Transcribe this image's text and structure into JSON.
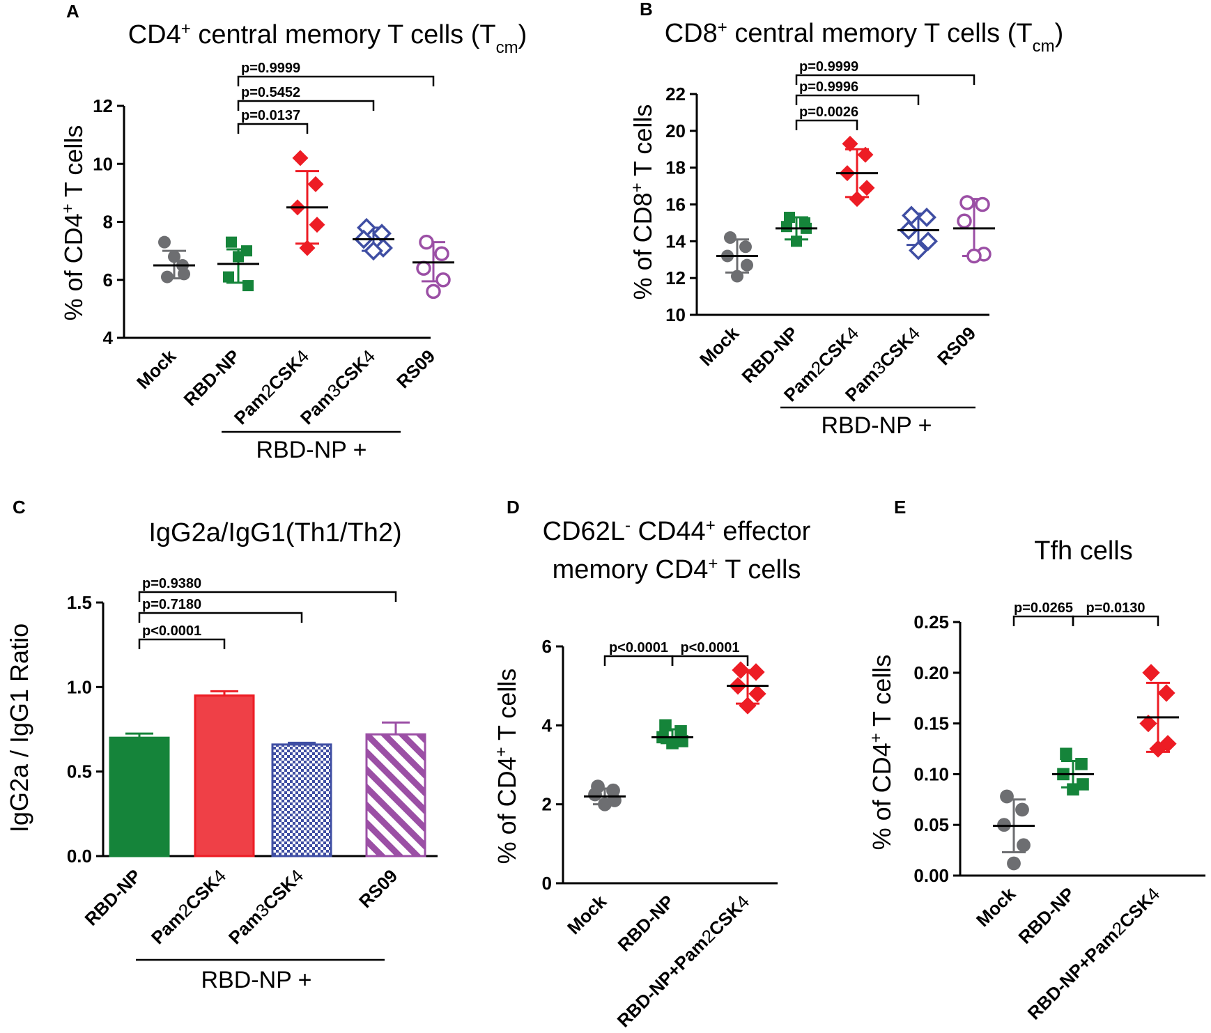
{
  "colors": {
    "Mock": "#6d6e71",
    "RBD-NP": "#15843a",
    "Pam2": "#ed1c24",
    "Pam3": "#3f4ea3",
    "RS09": "#9b4fa5",
    "axis": "#000000"
  },
  "chart_data": [
    {
      "id": "A",
      "letter": "A",
      "type": "scatter",
      "title": "CD4⁺ central memory T cells (T꜀ₘ)",
      "title_parts": {
        "base": "CD4",
        "sup": "+",
        "mid": " central memory T cells (T",
        "sub": "cm",
        "end": ")"
      },
      "ylabel_parts": {
        "base": "% of CD4",
        "sup": "+",
        "end": " T cells"
      },
      "ylim": [
        4,
        12
      ],
      "yticks": [
        4,
        6,
        8,
        10,
        12
      ],
      "ytick_labels": [
        "4",
        "6",
        "8",
        "10",
        "12"
      ],
      "categories": [
        "Mock",
        "RBD-NP",
        "Pam2CSK4",
        "Pam3CSK4",
        "RS09"
      ],
      "category_labels": [
        [
          "Mock"
        ],
        [
          "RBD-NP"
        ],
        [
          "Pam",
          "2",
          "CSK",
          "4"
        ],
        [
          "Pam",
          "3",
          "CSK",
          "4"
        ],
        [
          "RS09"
        ]
      ],
      "group_label": "RBD-NP +",
      "series": [
        {
          "name": "Mock",
          "marker": "circle",
          "filled": true,
          "color_key": "Mock",
          "points": [
            6.1,
            6.5,
            7.3,
            6.2,
            6.8
          ],
          "mean": 6.5,
          "sd_hi": 7.0,
          "sd_lo": 6.05
        },
        {
          "name": "RBD-NP",
          "marker": "square",
          "filled": true,
          "color_key": "RBD-NP",
          "points": [
            7.3,
            7.0,
            6.1,
            5.8,
            6.8
          ],
          "mean": 6.55,
          "sd_hi": 7.05,
          "sd_lo": 5.9
        },
        {
          "name": "Pam2CSK4",
          "marker": "diamond",
          "filled": true,
          "color_key": "Pam2",
          "points": [
            10.2,
            9.3,
            8.5,
            7.9,
            7.1
          ],
          "mean": 8.5,
          "sd_hi": 9.75,
          "sd_lo": 7.25
        },
        {
          "name": "Pam3CSK4",
          "marker": "diamond",
          "filled": false,
          "color_key": "Pam3",
          "points": [
            7.8,
            7.6,
            7.4,
            7.1,
            7.0
          ],
          "mean": 7.4,
          "sd_hi": 7.8,
          "sd_lo": 7.0
        },
        {
          "name": "RS09",
          "marker": "circle",
          "filled": false,
          "color_key": "RS09",
          "points": [
            7.3,
            6.9,
            6.4,
            6.0,
            5.6
          ],
          "mean": 6.6,
          "sd_hi": 7.3,
          "sd_lo": 5.95
        }
      ],
      "comparisons": [
        {
          "label": "p=0.0137",
          "i": 1,
          "j": 2
        },
        {
          "label": "p=0.5452",
          "i": 1,
          "j": 3
        },
        {
          "label": "p=0.9999",
          "i": 1,
          "j": 4
        }
      ]
    },
    {
      "id": "B",
      "letter": "B",
      "type": "scatter",
      "title": "CD8⁺ central memory T cells (T꜀ₘ)",
      "title_parts": {
        "base": "CD8",
        "sup": "+",
        "mid": " central memory T cells (T",
        "sub": "cm",
        "end": ")"
      },
      "ylabel_parts": {
        "base": "% of CD8",
        "sup": "+",
        "end": " T cells"
      },
      "ylim": [
        10,
        22
      ],
      "yticks": [
        10,
        12,
        14,
        16,
        18,
        20,
        22
      ],
      "ytick_labels": [
        "10",
        "12",
        "14",
        "16",
        "18",
        "20",
        "22"
      ],
      "categories": [
        "Mock",
        "RBD-NP",
        "Pam2CSK4",
        "Pam3CSK4",
        "RS09"
      ],
      "category_labels": [
        [
          "Mock"
        ],
        [
          "RBD-NP"
        ],
        [
          "Pam",
          "2",
          "CSK",
          "4"
        ],
        [
          "Pam",
          "3",
          "CSK",
          "4"
        ],
        [
          "RS09"
        ]
      ],
      "group_label": "RBD-NP +",
      "series": [
        {
          "name": "Mock",
          "marker": "circle",
          "filled": true,
          "color_key": "Mock",
          "points": [
            14.2,
            13.7,
            13.2,
            12.7,
            12.1
          ],
          "mean": 13.2,
          "sd_hi": 14.1,
          "sd_lo": 12.3
        },
        {
          "name": "RBD-NP",
          "marker": "square",
          "filled": true,
          "color_key": "RBD-NP",
          "points": [
            15.3,
            15.0,
            14.8,
            14.7,
            14.0
          ],
          "mean": 14.7,
          "sd_hi": 15.3,
          "sd_lo": 14.1
        },
        {
          "name": "Pam2CSK4",
          "marker": "diamond",
          "filled": true,
          "color_key": "Pam2",
          "points": [
            19.3,
            18.7,
            17.7,
            16.9,
            16.3
          ],
          "mean": 17.7,
          "sd_hi": 19.0,
          "sd_lo": 16.4
        },
        {
          "name": "Pam3CSK4",
          "marker": "diamond",
          "filled": false,
          "color_key": "Pam3",
          "points": [
            15.4,
            15.3,
            14.6,
            14.0,
            13.5
          ],
          "mean": 14.6,
          "sd_hi": 15.5,
          "sd_lo": 13.8
        },
        {
          "name": "RS09",
          "marker": "circle",
          "filled": false,
          "color_key": "RS09",
          "points": [
            16.1,
            16.0,
            15.1,
            13.3,
            13.2
          ],
          "mean": 14.7,
          "sd_hi": 16.3,
          "sd_lo": 13.2
        }
      ],
      "comparisons": [
        {
          "label": "p=0.0026",
          "i": 1,
          "j": 2
        },
        {
          "label": "p=0.9996",
          "i": 1,
          "j": 3
        },
        {
          "label": "p=0.9999",
          "i": 1,
          "j": 4
        }
      ]
    },
    {
      "id": "C",
      "letter": "C",
      "type": "bar",
      "title": "IgG2a/IgG1(Th1/Th2)",
      "ylabel": "IgG2a / IgG1 Ratio",
      "ylim": [
        0,
        1.5
      ],
      "yticks": [
        0,
        0.5,
        1.0,
        1.5
      ],
      "ytick_labels": [
        "0.0",
        "0.5",
        "1.0",
        "1.5"
      ],
      "categories": [
        "RBD-NP",
        "Pam2CSK4",
        "Pam3CSK4",
        "RS09"
      ],
      "category_labels": [
        [
          "RBD-NP"
        ],
        [
          "Pam",
          "2",
          "CSK",
          "4"
        ],
        [
          "Pam",
          "3",
          "CSK",
          "4"
        ],
        [
          "RS09"
        ]
      ],
      "group_label": "RBD-NP +",
      "values": [
        0.7,
        0.95,
        0.66,
        0.72
      ],
      "errors": [
        0.025,
        0.025,
        0.01,
        0.07
      ],
      "fills": [
        "solid",
        "solid-light",
        "checker",
        "stripes"
      ],
      "color_keys": [
        "RBD-NP",
        "Pam2",
        "Pam3",
        "RS09"
      ],
      "comparisons": [
        {
          "label": "p<0.0001",
          "i": 0,
          "j": 1
        },
        {
          "label": "p=0.7180",
          "i": 0,
          "j": 2
        },
        {
          "label": "p=0.9380",
          "i": 0,
          "j": 3
        }
      ]
    },
    {
      "id": "D",
      "letter": "D",
      "type": "scatter",
      "title_lines": [
        {
          "parts": [
            {
              "t": "CD62L"
            },
            {
              "t": "-",
              "sup": true
            },
            {
              "t": " CD44"
            },
            {
              "t": "+",
              "sup": true
            },
            {
              "t": " effector"
            }
          ]
        },
        {
          "parts": [
            {
              "t": "memory  CD4"
            },
            {
              "t": "+",
              "sup": true
            },
            {
              "t": " T cells"
            }
          ]
        }
      ],
      "title": "CD62L⁻ CD44⁺ effector memory CD4⁺ T cells",
      "ylabel_parts": {
        "base": "% of CD4",
        "sup": "+",
        "end": " T cells"
      },
      "ylim": [
        0,
        6
      ],
      "yticks": [
        0,
        2,
        4,
        6
      ],
      "ytick_labels": [
        "0",
        "2",
        "4",
        "6"
      ],
      "categories": [
        "Mock",
        "RBD-NP",
        "RBD-NP+Pam2CSK4"
      ],
      "category_labels": [
        [
          "Mock"
        ],
        [
          "RBD-NP"
        ],
        [
          "RBD-NP+Pam",
          "2",
          "CSK",
          "4"
        ]
      ],
      "series": [
        {
          "name": "Mock",
          "marker": "circle",
          "filled": true,
          "color_key": "Mock",
          "points": [
            2.45,
            2.35,
            2.25,
            2.1,
            2.0
          ],
          "mean": 2.2,
          "sd_hi": 2.4,
          "sd_lo": 2.0
        },
        {
          "name": "RBD-NP",
          "marker": "square",
          "filled": true,
          "color_key": "RBD-NP",
          "points": [
            4.0,
            3.85,
            3.7,
            3.6,
            3.55
          ],
          "mean": 3.7,
          "sd_hi": 3.9,
          "sd_lo": 3.55
        },
        {
          "name": "RBD-NP+Pam2CSK4",
          "marker": "diamond",
          "filled": true,
          "color_key": "Pam2",
          "points": [
            5.4,
            5.35,
            5.0,
            4.8,
            4.5
          ],
          "mean": 5.0,
          "sd_hi": 5.4,
          "sd_lo": 4.55
        }
      ],
      "comparisons": [
        {
          "label": "p<0.0001",
          "i": 0,
          "j": 1
        },
        {
          "label": "p<0.0001",
          "i": 1,
          "j": 2
        }
      ]
    },
    {
      "id": "E",
      "letter": "E",
      "type": "scatter",
      "title": "Tfh cells",
      "ylabel_parts": {
        "base": "% of CD4",
        "sup": "+",
        "end": " T cells"
      },
      "ylim": [
        0,
        0.25
      ],
      "yticks": [
        0,
        0.05,
        0.1,
        0.15,
        0.2,
        0.25
      ],
      "ytick_labels": [
        "0.00",
        "0.05",
        "0.10",
        "0.15",
        "0.20",
        "0.25"
      ],
      "categories": [
        "Mock",
        "RBD-NP",
        "RBD-NP+Pam2CSK4"
      ],
      "category_labels": [
        [
          "Mock"
        ],
        [
          "RBD-NP"
        ],
        [
          "RBD-NP+Pam",
          "2",
          "CSK",
          "4"
        ]
      ],
      "series": [
        {
          "name": "Mock",
          "marker": "circle",
          "filled": true,
          "color_key": "Mock",
          "points": [
            0.078,
            0.065,
            0.05,
            0.03,
            0.012
          ],
          "mean": 0.049,
          "sd_hi": 0.075,
          "sd_lo": 0.023
        },
        {
          "name": "RBD-NP",
          "marker": "square",
          "filled": true,
          "color_key": "RBD-NP",
          "points": [
            0.12,
            0.11,
            0.1,
            0.09,
            0.085
          ],
          "mean": 0.1,
          "sd_hi": 0.113,
          "sd_lo": 0.087
        },
        {
          "name": "RBD-NP+Pam2CSK4",
          "marker": "diamond",
          "filled": true,
          "color_key": "Pam2",
          "points": [
            0.2,
            0.18,
            0.15,
            0.13,
            0.125
          ],
          "mean": 0.156,
          "sd_hi": 0.19,
          "sd_lo": 0.122
        }
      ],
      "comparisons": [
        {
          "label": "p=0.0265",
          "i": 0,
          "j": 1
        },
        {
          "label": "p=0.0130",
          "i": 1,
          "j": 2
        }
      ]
    }
  ]
}
